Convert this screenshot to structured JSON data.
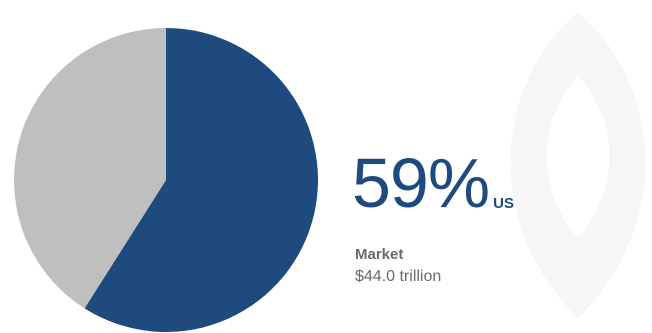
{
  "chart_data": {
    "type": "pie",
    "title": "",
    "slices": [
      {
        "name": "US",
        "value": 59,
        "color": "#1f4a7d"
      },
      {
        "name": "",
        "value": 41,
        "color": "#bfbfbf"
      }
    ],
    "highlight": {
      "value_label": "59%",
      "region_label": "US",
      "caption_title": "Market",
      "caption_value": "$44.0 trillion"
    }
  },
  "watermark": {
    "icon": "leaf-outline-icon",
    "color": "#f6f6f8"
  }
}
